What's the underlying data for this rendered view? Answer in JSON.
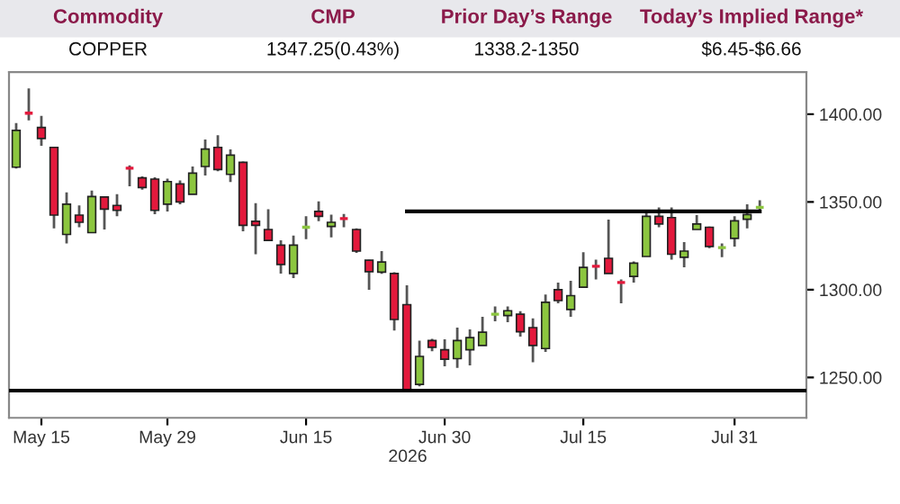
{
  "chart_data": {
    "type": "candlestick",
    "annotations": [
      "Commodity",
      "CMP",
      "Prior Day’s Range",
      "Today’s Implied Range*",
      "COPPER",
      "1347.25(0.43%)",
      "1338.2-1350",
      "$6.45-$6.66"
    ],
    "xlabel": "2026",
    "categories": [
      null,
      null,
      "May 15",
      null,
      null,
      null,
      null,
      null,
      null,
      null,
      null,
      null,
      "May 29",
      null,
      null,
      null,
      null,
      null,
      null,
      null,
      null,
      null,
      null,
      "Jun 15",
      null,
      null,
      null,
      null,
      null,
      null,
      null,
      null,
      null,
      null,
      "Jun 30",
      null,
      null,
      null,
      null,
      null,
      null,
      null,
      null,
      null,
      null,
      "Jul 15",
      null,
      null,
      null,
      null,
      null,
      null,
      null,
      null,
      null,
      null,
      null,
      "Jul 31",
      null,
      null
    ],
    "ohlc": [
      [
        1369.8,
        1394.9,
        1369,
        1390.8
      ],
      [
        1400.6,
        1414.7,
        1396.5,
        1400.6
      ],
      [
        1392.4,
        1399,
        1382,
        1386.2
      ],
      [
        1381.1,
        1381.1,
        1335,
        1342.5
      ],
      [
        1331.5,
        1355.4,
        1326.4,
        1348.7
      ],
      [
        1342.5,
        1348,
        1335.6,
        1338.4
      ],
      [
        1332.5,
        1356.5,
        1332.5,
        1353.1
      ],
      [
        1352.8,
        1352.8,
        1334.3,
        1345.9
      ],
      [
        1348,
        1354.4,
        1341.8,
        1345.2
      ],
      [
        1369.2,
        1370.8,
        1358.9,
        1369.2
      ],
      [
        1363.7,
        1364.5,
        1357,
        1358.2
      ],
      [
        1363,
        1364,
        1343,
        1345.2
      ],
      [
        1348.7,
        1363.3,
        1344.6,
        1361.6
      ],
      [
        1360.3,
        1362.3,
        1348.7,
        1350
      ],
      [
        1354.4,
        1370.2,
        1354.4,
        1366.4
      ],
      [
        1370.2,
        1385.6,
        1365.1,
        1380.1
      ],
      [
        1381.1,
        1388,
        1367.5,
        1368.5
      ],
      [
        1365.7,
        1380,
        1361.3,
        1376.7
      ],
      [
        1372.6,
        1373,
        1333.3,
        1336.7
      ],
      [
        1339,
        1349.3,
        1320.2,
        1336.7
      ],
      [
        1334.3,
        1345.9,
        1328.1,
        1328.1
      ],
      [
        1325.4,
        1328.1,
        1309.2,
        1314.4
      ],
      [
        1309.2,
        1330.8,
        1306.6,
        1325.4
      ],
      [
        1335.6,
        1341.8,
        1328.8,
        1335.6
      ],
      [
        1344.6,
        1350.3,
        1339,
        1341.8
      ],
      [
        1336,
        1342.8,
        1329.8,
        1338.4
      ],
      [
        1340.5,
        1343.1,
        1335.6,
        1340.5
      ],
      [
        1334.3,
        1335,
        1321,
        1322
      ],
      [
        1316.8,
        1317,
        1300,
        1310.3
      ],
      [
        1310,
        1322,
        1309,
        1315.8
      ],
      [
        1309.2,
        1310,
        1276.8,
        1283
      ],
      [
        1291.5,
        1302.5,
        1242,
        1242.5
      ],
      [
        1246,
        1271,
        1245,
        1262
      ],
      [
        1271,
        1272,
        1265,
        1267.2
      ],
      [
        1265.8,
        1271.7,
        1256.3,
        1260.4
      ],
      [
        1260.7,
        1278.4,
        1255.5,
        1271
      ],
      [
        1265.8,
        1277.4,
        1256.9,
        1272.7
      ],
      [
        1268.2,
        1284.6,
        1268.2,
        1275.8
      ],
      [
        1286,
        1290.4,
        1282,
        1286
      ],
      [
        1285.3,
        1290.4,
        1281.5,
        1288
      ],
      [
        1286,
        1287.7,
        1273.3,
        1276
      ],
      [
        1278.4,
        1283.6,
        1258.6,
        1268.2
      ],
      [
        1266.5,
        1297.3,
        1264.5,
        1292.8
      ],
      [
        1300,
        1304.1,
        1292.2,
        1293.8
      ],
      [
        1288.7,
        1305.1,
        1284.6,
        1296.6
      ],
      [
        1301.4,
        1321.3,
        1301.4,
        1312.7
      ],
      [
        1313.3,
        1317.1,
        1305.9,
        1313.3
      ],
      [
        1317.9,
        1340,
        1309.2,
        1309.2
      ],
      [
        1304.1,
        1305.9,
        1292.2,
        1304.1
      ],
      [
        1307.6,
        1316.1,
        1304.1,
        1315.1
      ],
      [
        1318.9,
        1344.6,
        1318.9,
        1341.8
      ],
      [
        1341.8,
        1346.9,
        1335.6,
        1337.4
      ],
      [
        1341.1,
        1346.9,
        1317.1,
        1320.2
      ],
      [
        1318.5,
        1327.1,
        1312.7,
        1322
      ],
      [
        1334.3,
        1342.5,
        1334.3,
        1337.4
      ],
      [
        1335.6,
        1336,
        1323.6,
        1324.6
      ],
      [
        1324,
        1326.4,
        1318.5,
        1324
      ],
      [
        1329.2,
        1341.8,
        1324.6,
        1339.2
      ],
      [
        1340.1,
        1348.7,
        1335,
        1342.8
      ],
      [
        1346.9,
        1351,
        1343.5,
        1346.9
      ]
    ],
    "colors": [
      "#8cc63f",
      "#e3193c",
      "#e3193c",
      "#e3193c",
      "#8cc63f",
      "#e3193c",
      "#8cc63f",
      "#e3193c",
      "#e3193c",
      "#e3193c",
      "#e3193c",
      "#e3193c",
      "#8cc63f",
      "#e3193c",
      "#8cc63f",
      "#8cc63f",
      "#e3193c",
      "#8cc63f",
      "#e3193c",
      "#e3193c",
      "#e3193c",
      "#e3193c",
      "#8cc63f",
      "#8cc63f",
      "#e3193c",
      "#8cc63f",
      "#e3193c",
      "#e3193c",
      "#e3193c",
      "#8cc63f",
      "#e3193c",
      "#e3193c",
      "#8cc63f",
      "#e3193c",
      "#e3193c",
      "#8cc63f",
      "#8cc63f",
      "#8cc63f",
      "#8cc63f",
      "#8cc63f",
      "#e3193c",
      "#e3193c",
      "#8cc63f",
      "#e3193c",
      "#8cc63f",
      "#8cc63f",
      "#e3193c",
      "#e3193c",
      "#e3193c",
      "#8cc63f",
      "#8cc63f",
      "#e3193c",
      "#e3193c",
      "#8cc63f",
      "#8cc63f",
      "#e3193c",
      "#8cc63f",
      "#8cc63f",
      "#8cc63f",
      "#8cc63f"
    ],
    "series": [
      {
        "type": "line",
        "color": "#000000",
        "values": [
          null,
          null,
          null,
          null,
          null,
          null,
          null,
          null,
          null,
          null,
          null,
          null,
          null,
          null,
          null,
          null,
          null,
          null,
          null,
          null,
          null,
          null,
          null,
          null,
          null,
          null,
          null,
          null,
          null,
          null,
          null,
          1344.6,
          1344.6,
          1344.6,
          1344.6,
          1344.6,
          1344.6,
          1344.6,
          1344.6,
          1344.6,
          1344.6,
          1344.6,
          1344.6,
          1344.6,
          1344.6,
          1344.6,
          1344.6,
          1344.6,
          1344.6,
          1344.6,
          1344.6,
          1344.6,
          1344.6,
          1344.6,
          1344.6,
          1344.6,
          1344.6,
          1344.6,
          1344.6,
          1344.6
        ]
      }
    ],
    "ref_lines": [
      {
        "axis": "y",
        "value": 1242.5,
        "color": "#000000"
      }
    ],
    "ylim": [
      1227,
      1424
    ],
    "yticks": [
      {
        "value": 1250,
        "label": "1250.00"
      },
      {
        "value": 1300,
        "label": "1300.00"
      },
      {
        "value": 1350,
        "label": "1350.00"
      },
      {
        "value": 1400,
        "label": "1400.00"
      }
    ],
    "grid": false
  }
}
